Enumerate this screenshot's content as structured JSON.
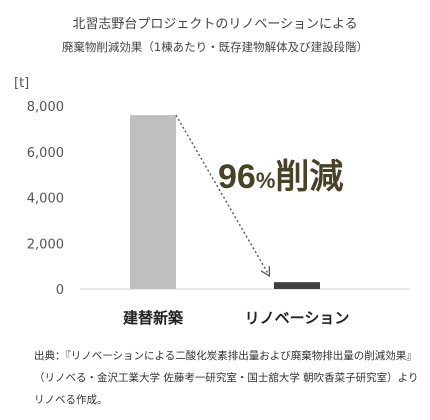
{
  "chart_data": {
    "type": "bar",
    "title": "北習志野台プロジェクトのリノベーションによる",
    "subtitle": "廃棄物削減効果（1棟あたり・既存建物解体及び建設段階）",
    "unit_label": "[t]",
    "categories": [
      "建替新築",
      "リノベーション"
    ],
    "values": [
      7600,
      300
    ],
    "yticks": [
      "8,000",
      "6,000",
      "4,000",
      "2,000",
      "0"
    ],
    "ylim": [
      0,
      8000
    ],
    "grid": false,
    "bar_colors": [
      "#bfbfbf",
      "#404040"
    ],
    "annotation": {
      "big": "96",
      "small": "%",
      "tail": "削減",
      "color": "#4a4227"
    }
  },
  "source": "出典：『リノベーションによる二酸化炭素排出量および廃棄物排出量の削減効果』（リノベる・金沢工業大学 佐藤考一研究室・国士舘大学 朝吹香菜子研究室）よりリノベる作成。"
}
